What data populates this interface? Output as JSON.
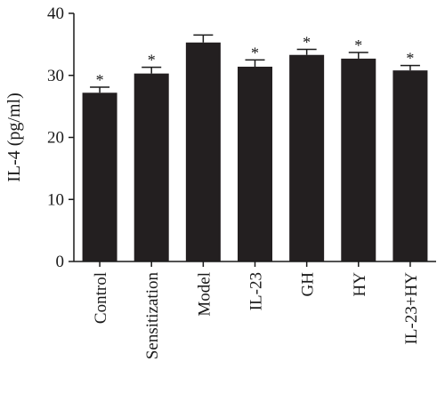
{
  "chart_data": {
    "type": "bar",
    "title": "",
    "xlabel": "",
    "ylabel": "IL-4 (pg/ml)",
    "ylim": [
      0,
      40
    ],
    "yticks": [
      0,
      10,
      20,
      30,
      40
    ],
    "categories": [
      "Control",
      "Sensitization",
      "Model",
      "IL-23",
      "GH",
      "HY",
      "IL-23+HY"
    ],
    "values": [
      27.2,
      30.3,
      35.3,
      31.4,
      33.3,
      32.7,
      30.8
    ],
    "errors": [
      0.9,
      1.0,
      1.2,
      1.1,
      0.9,
      1.0,
      0.8
    ],
    "significance": [
      "*",
      "*",
      "",
      "*",
      "*",
      "*",
      "*"
    ],
    "bar_color": "#231f20",
    "grid": false
  }
}
